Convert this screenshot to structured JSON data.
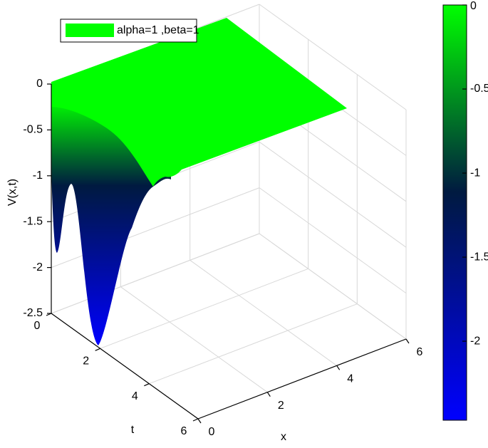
{
  "chart_data": {
    "type": "surface",
    "xlabel": "x",
    "tlabel": "t",
    "zlabel": "V(x,t)",
    "series": [
      {
        "name": "alpha=1 ,beta=1",
        "color": "#00ff00"
      }
    ],
    "xlim": [
      0,
      6
    ],
    "xticks": [
      0,
      2,
      4,
      6
    ],
    "tlim": [
      0,
      6
    ],
    "tticks": [
      0,
      2,
      4,
      6
    ],
    "zlim": [
      -2.5,
      0
    ],
    "zticks": [
      -2.5,
      -2,
      -1.5,
      -1,
      -0.5,
      0
    ],
    "clim": [
      -2.47,
      0
    ],
    "cticks": [
      -2,
      -1.5,
      -1,
      -0.5,
      0
    ],
    "colormap": [
      "#00ff00",
      "#001a40",
      "#0000ff"
    ],
    "grid": true
  }
}
